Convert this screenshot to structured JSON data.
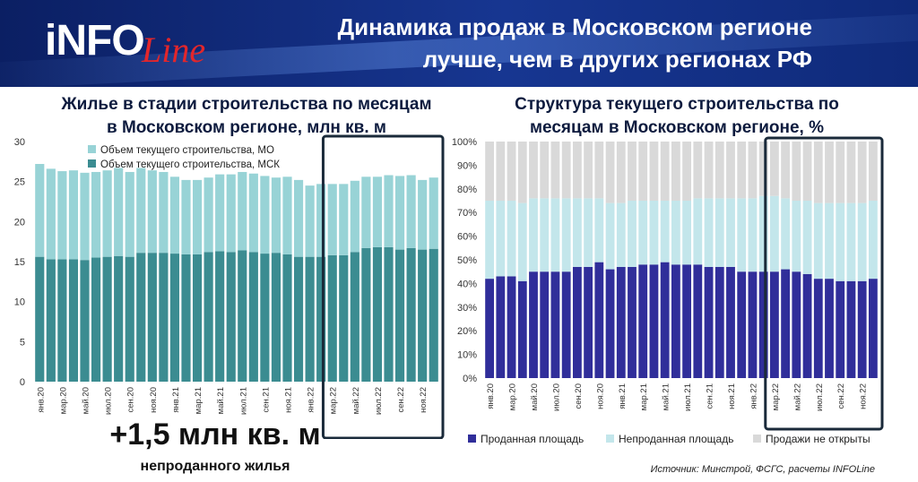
{
  "header": {
    "logo_text": "iNFO",
    "logo_script": "Line",
    "title_line1": "Динамика продаж в Московском регионе",
    "title_line2": "лучше, чем в других регионах РФ"
  },
  "left_panel": {
    "title_line1": "Жилье в стадии строительства по месяцам",
    "title_line2": "в Московском регионе, млн кв. м",
    "note_big": "+1,5 млн кв. м",
    "note_small": "непроданного жилья"
  },
  "right_panel": {
    "title_line1": "Структура текущего строительства по",
    "title_line2": "месяцам в Московском регионе, %"
  },
  "source": "Источник: Минстрой, ФСГС, расчеты INFOLine",
  "colors": {
    "msk": "#3b8c91",
    "mo": "#98d3d6",
    "sold": "#302e9a",
    "unsold": "#c3e6eb",
    "notopen": "#d9d9d9",
    "frame": "#1a2a3a"
  },
  "chart_data": [
    {
      "type": "bar",
      "stacked": true,
      "categories": [
        "янв.20",
        "фев.20",
        "мар.20",
        "апр.20",
        "май.20",
        "июн.20",
        "июл.20",
        "авг.20",
        "сен.20",
        "окт.20",
        "ноя.20",
        "дек.20",
        "янв.21",
        "фев.21",
        "мар.21",
        "апр.21",
        "май.21",
        "июн.21",
        "июл.21",
        "авг.21",
        "сен.21",
        "окт.21",
        "ноя.21",
        "дек.21",
        "янв.22",
        "фев.22",
        "мар.22",
        "апр.22",
        "май.22",
        "июн.22",
        "июл.22",
        "авг.22",
        "сен.22",
        "окт.22",
        "ноя.22",
        "дек.22"
      ],
      "shown_tick_labels": [
        "янв.20",
        "мар.20",
        "май.20",
        "июл.20",
        "сен.20",
        "ноя.20",
        "янв.21",
        "мар.21",
        "май.21",
        "июл.21",
        "сен.21",
        "ноя.21",
        "янв.22",
        "мар.22",
        "май.22",
        "июл.22",
        "сен.22",
        "ноя.22"
      ],
      "series": [
        {
          "name": "Объем текущего строительства, МСК",
          "values": [
            15.6,
            15.3,
            15.3,
            15.3,
            15.2,
            15.5,
            15.6,
            15.7,
            15.6,
            16.1,
            16.1,
            16.1,
            16.0,
            15.9,
            15.9,
            16.2,
            16.3,
            16.2,
            16.4,
            16.2,
            16.0,
            16.1,
            15.9,
            15.6,
            15.6,
            15.6,
            15.8,
            15.8,
            16.2,
            16.7,
            16.8,
            16.8,
            16.5,
            16.7,
            16.5,
            16.6
          ]
        },
        {
          "name": "Объем текущего строительства, МО",
          "values": [
            11.6,
            11.3,
            11.0,
            11.1,
            10.9,
            10.7,
            10.8,
            11.0,
            10.6,
            10.6,
            10.3,
            10.1,
            9.6,
            9.3,
            9.3,
            9.3,
            9.6,
            9.7,
            9.8,
            9.8,
            9.7,
            9.4,
            9.7,
            9.6,
            8.9,
            9.1,
            8.9,
            8.9,
            8.9,
            8.9,
            8.8,
            9.0,
            9.2,
            9.1,
            8.7,
            8.9
          ]
        }
      ],
      "ylim": [
        0,
        30
      ],
      "yticks": [
        0,
        5,
        10,
        15,
        20,
        25,
        30
      ],
      "highlight_range": [
        "мар.22",
        "дек.22"
      ],
      "legend_position": "top-left"
    },
    {
      "type": "bar",
      "stacked": true,
      "percent": true,
      "categories": [
        "янв.20",
        "фев.20",
        "мар.20",
        "апр.20",
        "май.20",
        "июн.20",
        "июл.20",
        "авг.20",
        "сен.20",
        "окт.20",
        "ноя.20",
        "дек.20",
        "янв.21",
        "фев.21",
        "мар.21",
        "апр.21",
        "май.21",
        "июн.21",
        "июл.21",
        "авг.21",
        "сен.21",
        "окт.21",
        "ноя.21",
        "дек.21",
        "янв.22",
        "фев.22",
        "мар.22",
        "апр.22",
        "май.22",
        "июн.22",
        "июл.22",
        "авг.22",
        "сен.22",
        "окт.22",
        "ноя.22",
        "дек.22"
      ],
      "shown_tick_labels": [
        "янв.20",
        "мар.20",
        "май.20",
        "июл.20",
        "сен.20",
        "ноя.20",
        "янв.21",
        "мар.21",
        "май.21",
        "июл.21",
        "сен.21",
        "ноя.21",
        "янв.22",
        "мар.22",
        "май.22",
        "июл.22",
        "сен.22",
        "ноя.22"
      ],
      "series": [
        {
          "name": "Проданная площадь",
          "values": [
            42,
            43,
            43,
            41,
            45,
            45,
            45,
            45,
            47,
            47,
            49,
            46,
            47,
            47,
            48,
            48,
            49,
            48,
            48,
            48,
            47,
            47,
            47,
            45,
            45,
            45,
            45,
            46,
            45,
            44,
            42,
            42,
            41,
            41,
            41,
            42
          ]
        },
        {
          "name": "Непроданная площадь",
          "values": [
            33,
            32,
            32,
            33,
            31,
            31,
            31,
            31,
            29,
            29,
            27,
            28,
            27,
            28,
            27,
            27,
            26,
            27,
            27,
            28,
            29,
            29,
            29,
            31,
            31,
            32,
            32,
            30,
            30,
            31,
            32,
            32,
            33,
            33,
            33,
            33
          ]
        },
        {
          "name": "Продажи не открыты",
          "values": [
            25,
            25,
            25,
            26,
            24,
            24,
            24,
            24,
            24,
            24,
            24,
            26,
            26,
            25,
            25,
            25,
            25,
            25,
            25,
            24,
            24,
            24,
            24,
            24,
            24,
            23,
            23,
            24,
            25,
            25,
            26,
            26,
            26,
            26,
            26,
            25
          ]
        }
      ],
      "ylim": [
        0,
        100
      ],
      "yticks": [
        "0%",
        "10%",
        "20%",
        "30%",
        "40%",
        "50%",
        "60%",
        "70%",
        "80%",
        "90%",
        "100%"
      ],
      "highlight_range": [
        "мар.22",
        "дек.22"
      ],
      "legend_position": "bottom"
    }
  ]
}
